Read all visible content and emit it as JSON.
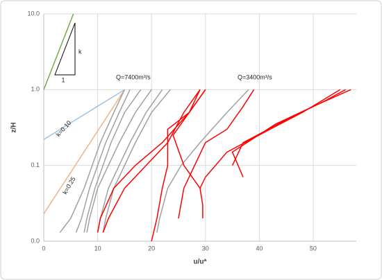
{
  "chart_data": {
    "type": "line",
    "x_label": "u/u*",
    "y_label": "z/H",
    "xlim": [
      0,
      58
    ],
    "xticks": [
      0,
      10,
      20,
      30,
      40,
      50
    ],
    "ylim": [
      0.01,
      10
    ],
    "ylog": true,
    "yticks": [
      {
        "value": 0.01,
        "label": "0.0"
      },
      {
        "value": 0.1,
        "label": "0.1"
      },
      {
        "value": 1,
        "label": "1.0"
      },
      {
        "value": 10,
        "label": "10.0"
      }
    ],
    "grid": true,
    "annotations": [
      "Q=7400m³/s",
      "Q=3400m³/s",
      "k=0.10",
      "k=0.25",
      "k",
      "1"
    ],
    "series": [
      {
        "color": "#70ad47",
        "x": [
          0,
          5.5
        ],
        "y": [
          1,
          10
        ]
      },
      {
        "color": "#9dc3e6",
        "x": [
          0,
          15
        ],
        "y": [
          0.22,
          1
        ]
      },
      {
        "color": "#f4b183",
        "x": [
          0,
          15
        ],
        "y": [
          0.023,
          1
        ]
      },
      {
        "color": "#a0a0a0",
        "x": [
          15,
          13,
          10.5,
          9,
          7.5,
          5,
          3
        ],
        "y": [
          1,
          0.5,
          0.2,
          0.1,
          0.05,
          0.02,
          0.013
        ]
      },
      {
        "color": "#a0a0a0",
        "x": [
          16,
          14,
          11.5,
          10,
          8.5,
          7,
          6
        ],
        "y": [
          1,
          0.5,
          0.2,
          0.1,
          0.05,
          0.02,
          0.013
        ]
      },
      {
        "color": "#a0a0a0",
        "x": [
          18,
          15,
          12.5,
          11,
          9.5,
          8,
          7.5
        ],
        "y": [
          1,
          0.5,
          0.2,
          0.1,
          0.05,
          0.02,
          0.013
        ]
      },
      {
        "color": "#a0a0a0",
        "x": [
          20,
          17,
          14,
          12,
          10,
          8.5,
          8
        ],
        "y": [
          1,
          0.5,
          0.2,
          0.1,
          0.05,
          0.02,
          0.013
        ]
      },
      {
        "color": "#a0a0a0",
        "x": [
          22,
          19,
          16,
          14,
          12,
          10.5,
          10
        ],
        "y": [
          1,
          0.5,
          0.2,
          0.1,
          0.05,
          0.02,
          0.013
        ]
      },
      {
        "color": "#a0a0a0",
        "x": [
          23.5,
          20,
          17,
          15,
          13,
          11.5,
          11
        ],
        "y": [
          1,
          0.5,
          0.2,
          0.1,
          0.05,
          0.02,
          0.013
        ]
      },
      {
        "color": "#a0a0a0",
        "x": [
          38,
          34,
          29,
          25.5,
          23,
          21.5,
          21
        ],
        "y": [
          1,
          0.5,
          0.2,
          0.1,
          0.05,
          0.02,
          0.013
        ]
      },
      {
        "color": "#ff0000",
        "x": [
          30,
          27,
          22,
          17,
          13,
          10.5,
          10
        ],
        "y": [
          1,
          0.5,
          0.2,
          0.1,
          0.05,
          0.02,
          0.013
        ]
      },
      {
        "color": "#ff0000",
        "x": [
          29,
          26,
          23,
          19,
          15,
          12,
          11
        ],
        "y": [
          1,
          0.5,
          0.2,
          0.1,
          0.05,
          0.02,
          0.013
        ]
      },
      {
        "color": "#ff0000",
        "x": [
          30,
          27,
          23,
          23,
          22,
          21,
          20
        ],
        "y": [
          1,
          0.5,
          0.3,
          0.1,
          0.05,
          0.02,
          0.01
        ]
      },
      {
        "color": "#ff0000",
        "x": [
          29,
          27,
          24,
          26,
          29,
          29.5,
          29.5
        ],
        "y": [
          1,
          0.5,
          0.25,
          0.1,
          0.05,
          0.03,
          0.02
        ]
      },
      {
        "color": "#ff0000",
        "x": [
          39,
          37,
          34,
          30,
          28,
          26,
          25
        ],
        "y": [
          1,
          0.6,
          0.3,
          0.2,
          0.1,
          0.05,
          0.02
        ]
      },
      {
        "color": "#ff0000",
        "x": [
          56,
          52,
          45,
          37,
          35
        ],
        "y": [
          1,
          0.7,
          0.4,
          0.2,
          0.1
        ]
      },
      {
        "color": "#ff0000",
        "x": [
          57,
          50,
          43,
          35,
          37
        ],
        "y": [
          1,
          0.6,
          0.35,
          0.15,
          0.07
        ]
      },
      {
        "color": "#ff0000",
        "x": [
          55,
          48,
          42,
          34,
          30,
          29
        ],
        "y": [
          1,
          0.5,
          0.3,
          0.15,
          0.07,
          0.05
        ]
      }
    ]
  }
}
